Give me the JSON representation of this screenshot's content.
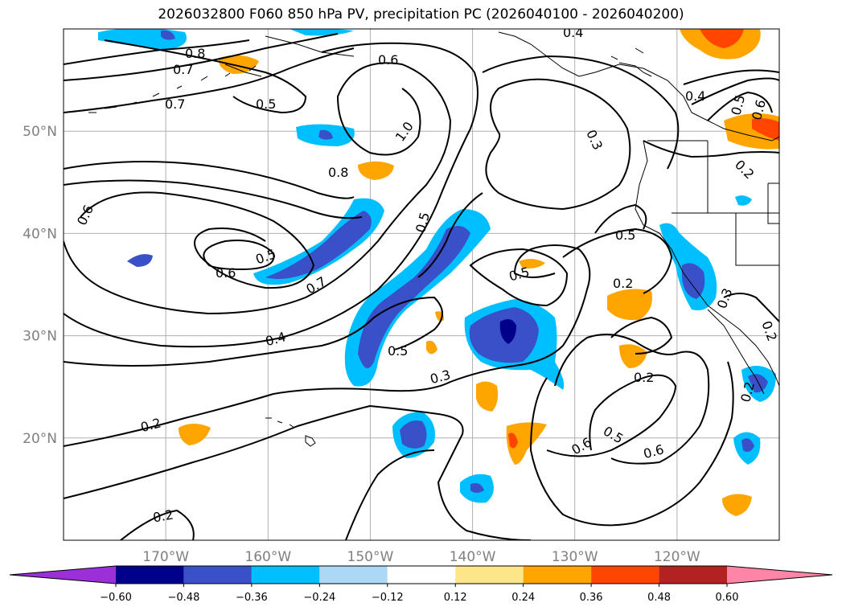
{
  "chart_data": {
    "type": "contour-map",
    "title": "2026032800 F060 850 hPa PV, precipitation PC (2026040100 - 2026040200)",
    "lat_ticks": [
      "50°N",
      "40°N",
      "30°N",
      "20°N"
    ],
    "lon_ticks": [
      "170°W",
      "160°W",
      "150°W",
      "140°W",
      "130°W",
      "120°W"
    ],
    "lat_values": [
      50,
      40,
      30,
      20
    ],
    "lon_values": [
      -170,
      -160,
      -150,
      -140,
      -130,
      -120
    ],
    "extent": {
      "lon_min": -180,
      "lon_max": -110,
      "lat_min": 10,
      "lat_max": 60
    },
    "contour_labels": [
      "0.8",
      "0.7",
      "0.7",
      "0.5",
      "0.6",
      "1.0",
      "0.8",
      "0.6",
      "0.5",
      "0.6",
      "0.5",
      "0.7",
      "0.4",
      "0.5",
      "0.5",
      "0.3",
      "0.2",
      "0.2",
      "0.3",
      "0.5",
      "0.2",
      "0.2",
      "0.6",
      "0.5",
      "0.6",
      "0.4",
      "0.5",
      "0.6",
      "0.2",
      "0.3",
      "0.2",
      "0.2",
      "0.4"
    ],
    "colorbar": {
      "ticks": [
        "−0.60",
        "−0.48",
        "−0.36",
        "−0.24",
        "−0.12",
        "0.12",
        "0.24",
        "0.36",
        "0.48",
        "0.60"
      ],
      "levels": [
        -0.6,
        -0.48,
        -0.36,
        -0.24,
        -0.12,
        0.12,
        0.24,
        0.36,
        0.48,
        0.6
      ],
      "colors": [
        "#9b30d9",
        "#00008b",
        "#3a50c8",
        "#00bfff",
        "#add8f5",
        "#ffffff",
        "#fde68a",
        "#ffa500",
        "#ff4500",
        "#b22222",
        "#ff85a8"
      ]
    }
  }
}
